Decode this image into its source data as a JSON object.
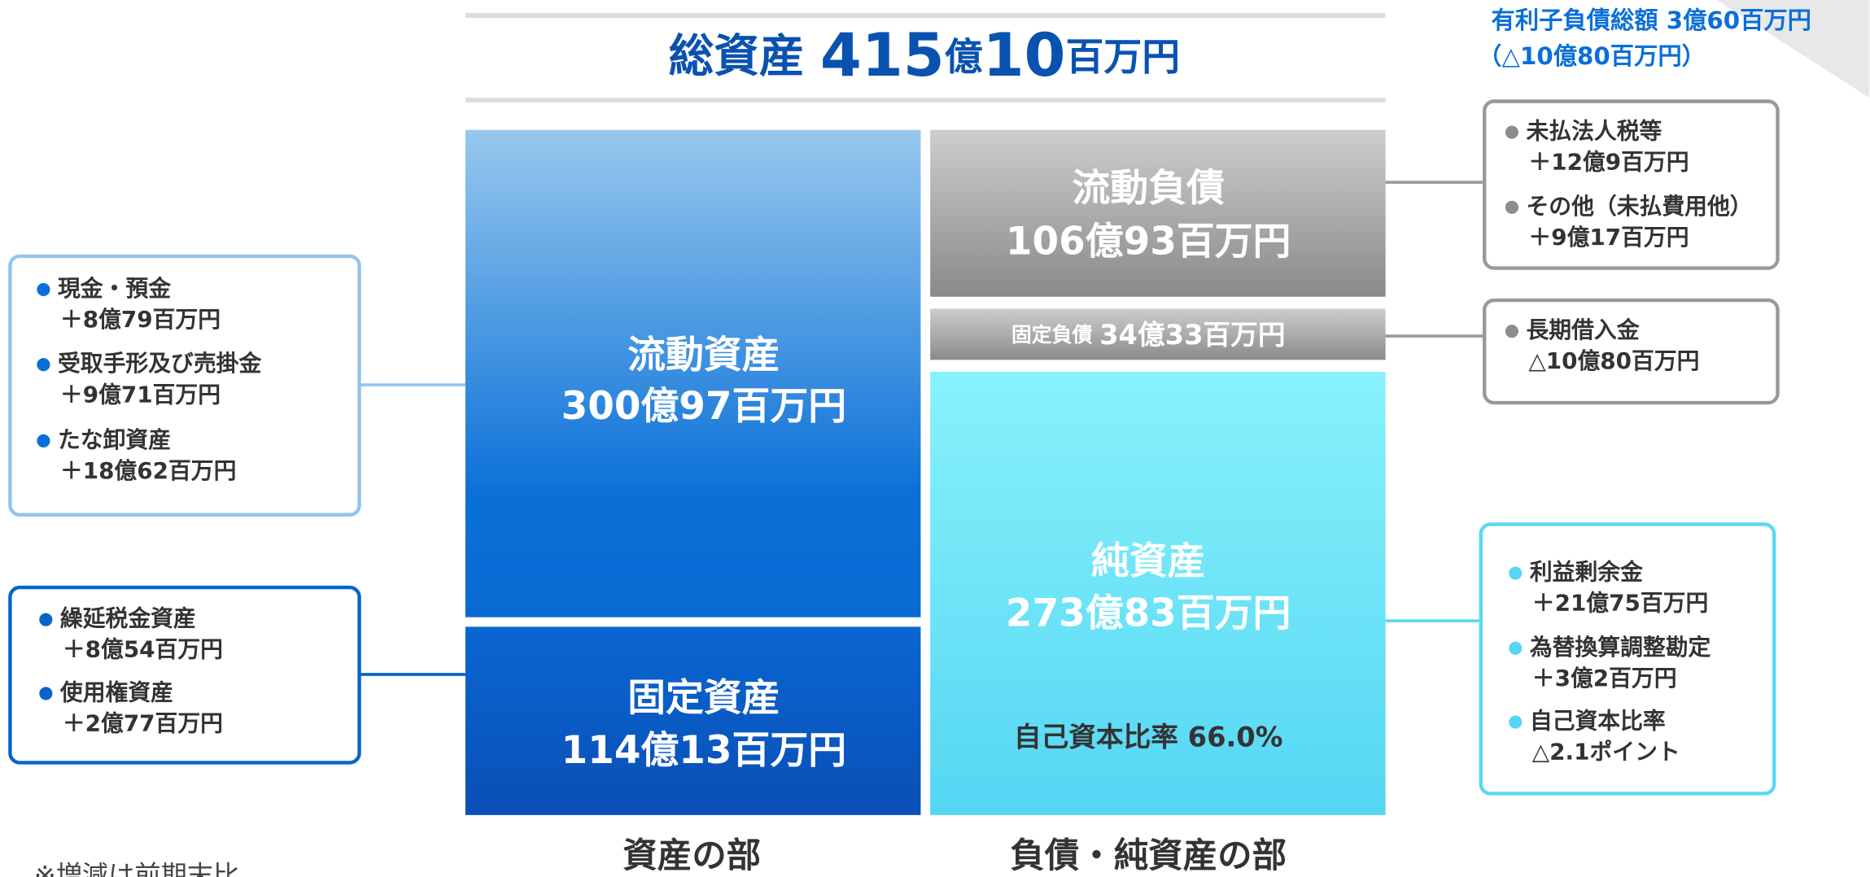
{
  "title": {
    "parts": [
      "総資産 ",
      "415",
      "億",
      "10",
      "百万円"
    ]
  },
  "debt_note": {
    "line1": "有利子負債総額 3億60百万円",
    "line2": "（△10億80百万円）"
  },
  "assets": {
    "current": {
      "label": "流動資産",
      "amount": "300億97百万円"
    },
    "fixed": {
      "label": "固定資産",
      "amount": "114億13百万円"
    },
    "footer": "資産の部"
  },
  "liabilities": {
    "current": {
      "label": "流動負債",
      "amount": "106億93百万円"
    },
    "fixed": {
      "label": "固定負債",
      "amount": "34億33百万円"
    },
    "equity": {
      "label": "純資産",
      "amount": "273億83百万円",
      "ratio": "自己資本比率  66.0%"
    },
    "footer": "負債・純資産の部"
  },
  "note": "※増減は前期末比",
  "callouts": [
    {
      "items": [
        {
          "label": "現金・預金",
          "change": "＋8億79百万円"
        },
        {
          "label": "受取手形及び売掛金",
          "change": "＋9億71百万円"
        },
        {
          "label": "たな卸資産",
          "change": "＋18億62百万円"
        }
      ]
    },
    {
      "items": [
        {
          "label": "繰延税金資産",
          "change": "＋8億54百万円"
        },
        {
          "label": "使用権資産",
          "change": "＋2億77百万円"
        }
      ]
    },
    {
      "items": [
        {
          "label": "未払法人税等",
          "change": "＋12億9百万円"
        },
        {
          "label": "その他（未払費用他）",
          "change": "＋9億17百万円"
        }
      ]
    },
    {
      "items": [
        {
          "label": "長期借入金",
          "change": "△10億80百万円"
        }
      ]
    },
    {
      "items": [
        {
          "label": "利益剰余金",
          "change": "＋21億75百万円"
        },
        {
          "label": "為替換算調整勘定",
          "change": "＋3億2百万円"
        },
        {
          "label": "自己資本比率",
          "change": "△2.1ポイント"
        }
      ]
    }
  ]
}
